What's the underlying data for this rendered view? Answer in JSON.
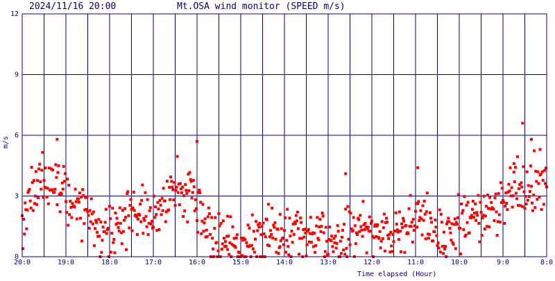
{
  "header": {
    "timestamp": "2024/11/16 20:00",
    "title": "Mt.OSA wind monitor (SPEED m/s)"
  },
  "colors": {
    "background": "#ffffff",
    "grid": "#000080",
    "text": "#000080",
    "points": "#ff0000"
  },
  "chart_data": {
    "type": "scatter",
    "title": "Mt.OSA wind monitor (SPEED m/s)",
    "ylabel": "m/s",
    "xlabel": "Time elapsed (Hour)",
    "ylim": [
      0,
      12
    ],
    "yticks": [
      0,
      3,
      6,
      9,
      12
    ],
    "ytick_labels": [
      "0",
      "3",
      "6",
      "9",
      "12"
    ],
    "xlim": [
      20,
      8
    ],
    "xticks": [
      20,
      19.5,
      19,
      18.5,
      18,
      17.5,
      17,
      16.5,
      16,
      15.5,
      15,
      14.5,
      14,
      13.5,
      13,
      12.5,
      12,
      11.5,
      11,
      10.5,
      10,
      9.5,
      9,
      8.5,
      8
    ],
    "xtick_labels": [
      "20:0",
      "",
      "19:0",
      "",
      "18:0",
      "",
      "17:0",
      "",
      "16:0",
      "",
      "15:0",
      "",
      "14:0",
      "",
      "13:0",
      "",
      "12:0",
      "",
      "11:0",
      "",
      "10:0",
      "",
      "9:0",
      "",
      "8:0"
    ],
    "grid": true,
    "x_reversed": true,
    "x_units": "hour of day",
    "y_units": "m/s",
    "anchors": [
      [
        20.0,
        1.6
      ],
      [
        19.9,
        2.5
      ],
      [
        19.75,
        3.5
      ],
      [
        19.6,
        3.9
      ],
      [
        19.45,
        3.6
      ],
      [
        19.3,
        3.3
      ],
      [
        19.15,
        3.6
      ],
      [
        19.0,
        3.3
      ],
      [
        18.85,
        2.6
      ],
      [
        18.7,
        2.2
      ],
      [
        18.5,
        2.0
      ],
      [
        18.3,
        1.6
      ],
      [
        18.1,
        1.3
      ],
      [
        17.95,
        1.2
      ],
      [
        17.8,
        1.6
      ],
      [
        17.6,
        1.9
      ],
      [
        17.4,
        2.1
      ],
      [
        17.2,
        2.1
      ],
      [
        17.0,
        2.0
      ],
      [
        16.85,
        2.3
      ],
      [
        16.7,
        3.0
      ],
      [
        16.5,
        3.5
      ],
      [
        16.3,
        3.3
      ],
      [
        16.1,
        3.2
      ],
      [
        15.95,
        2.5
      ],
      [
        15.8,
        1.6
      ],
      [
        15.6,
        1.0
      ],
      [
        15.4,
        0.8
      ],
      [
        15.2,
        0.6
      ],
      [
        15.0,
        0.4
      ],
      [
        14.8,
        0.5
      ],
      [
        14.6,
        0.9
      ],
      [
        14.4,
        1.1
      ],
      [
        14.2,
        1.1
      ],
      [
        14.0,
        1.2
      ],
      [
        13.8,
        1.1
      ],
      [
        13.6,
        1.0
      ],
      [
        13.4,
        1.0
      ],
      [
        13.2,
        1.0
      ],
      [
        13.0,
        0.7
      ],
      [
        12.8,
        0.7
      ],
      [
        12.6,
        0.9
      ],
      [
        12.4,
        1.5
      ],
      [
        12.2,
        1.6
      ],
      [
        12.0,
        1.3
      ],
      [
        11.8,
        1.0
      ],
      [
        11.6,
        1.0
      ],
      [
        11.4,
        1.4
      ],
      [
        11.2,
        1.8
      ],
      [
        11.0,
        1.9
      ],
      [
        10.8,
        1.7
      ],
      [
        10.6,
        1.3
      ],
      [
        10.4,
        1.1
      ],
      [
        10.2,
        1.3
      ],
      [
        10.0,
        1.5
      ],
      [
        9.8,
        1.8
      ],
      [
        9.6,
        2.2
      ],
      [
        9.4,
        2.4
      ],
      [
        9.2,
        2.5
      ],
      [
        9.0,
        2.6
      ],
      [
        8.8,
        3.0
      ],
      [
        8.6,
        3.5
      ],
      [
        8.4,
        3.8
      ],
      [
        8.2,
        3.7
      ],
      [
        8.0,
        3.2
      ]
    ],
    "outliers": [
      [
        19.2,
        5.8
      ],
      [
        16.0,
        5.7
      ],
      [
        8.55,
        6.6
      ],
      [
        8.35,
        5.8
      ],
      [
        10.95,
        4.4
      ],
      [
        8.75,
        4.6
      ],
      [
        12.6,
        4.1
      ],
      [
        8.15,
        5.3
      ],
      [
        14.1,
        2.1
      ],
      [
        15.3,
        2.0
      ]
    ],
    "points_per_hour": 60,
    "spread_m_s": 1.3
  },
  "footer": {
    "xlabel": "Time elapsed (Hour)"
  }
}
